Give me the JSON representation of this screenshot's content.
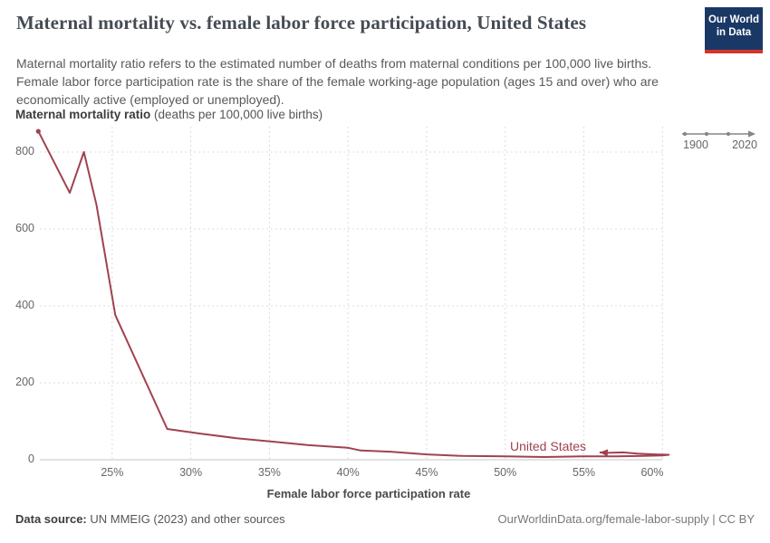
{
  "header": {
    "title": "Maternal mortality vs. female labor force participation, United States",
    "subtitle": "Maternal mortality ratio refers to the estimated number of deaths from maternal conditions per 100,000 live births. Female labor force participation rate is the share of the female working-age population (ages 15 and over) who are economically active (employed or unemployed).",
    "logo": {
      "line1": "Our World",
      "line2": "in Data"
    }
  },
  "chart_data": {
    "type": "line",
    "title": "Maternal mortality vs. female labor force participation, United States",
    "xlabel": "Female labor force participation rate",
    "ylabel_bold": "Maternal mortality ratio",
    "ylabel_units": " (deaths per 100,000 live births)",
    "xlim": [
      20.4,
      60.5
    ],
    "ylim": [
      0,
      866
    ],
    "grid": "dashed",
    "x_ticks": [
      {
        "value": 25,
        "label": "25%"
      },
      {
        "value": 30,
        "label": "30%"
      },
      {
        "value": 35,
        "label": "35%"
      },
      {
        "value": 40,
        "label": "40%"
      },
      {
        "value": 45,
        "label": "45%"
      },
      {
        "value": 50,
        "label": "50%"
      },
      {
        "value": 55,
        "label": "55%"
      },
      {
        "value": 60,
        "label": "60%"
      }
    ],
    "y_ticks": [
      {
        "value": 0,
        "label": "0"
      },
      {
        "value": 200,
        "label": "200"
      },
      {
        "value": 400,
        "label": "400"
      },
      {
        "value": 600,
        "label": "600"
      },
      {
        "value": 800,
        "label": "800"
      }
    ],
    "series": [
      {
        "name": "United States",
        "color": "#a0424f",
        "points": [
          [
            20.3,
            854
          ],
          [
            22.3,
            694
          ],
          [
            23.2,
            800
          ],
          [
            24.0,
            663
          ],
          [
            25.2,
            376
          ],
          [
            28.5,
            80
          ],
          [
            30.6,
            68
          ],
          [
            32.9,
            56
          ],
          [
            35.2,
            47
          ],
          [
            37.5,
            38
          ],
          [
            40.0,
            31
          ],
          [
            40.8,
            24
          ],
          [
            42.7,
            21
          ],
          [
            45.0,
            14
          ],
          [
            47.3,
            10
          ],
          [
            50.0,
            9
          ],
          [
            52.5,
            7
          ],
          [
            55.0,
            9
          ],
          [
            57.1,
            9
          ],
          [
            58.8,
            10
          ],
          [
            60.0,
            11
          ],
          [
            60.4,
            13
          ],
          [
            59.6,
            14
          ],
          [
            58.4,
            16
          ],
          [
            57.5,
            19
          ],
          [
            56.5,
            18
          ],
          [
            56.0,
            19
          ]
        ]
      }
    ],
    "timeline": {
      "start_label": "1900",
      "end_label": "2020"
    }
  },
  "colors": {
    "line": "#a0424f",
    "grid": "#dcdcdc",
    "zero_axis": "#c4c4c4",
    "timeline": "#858585",
    "logo_bg": "#1a3866",
    "logo_accent": "#d4342c"
  },
  "footer": {
    "source_bold": "Data source:",
    "source_rest": " UN MMEIG (2023) and other sources",
    "credit": "OurWorldinData.org/female-labor-supply | CC BY"
  }
}
